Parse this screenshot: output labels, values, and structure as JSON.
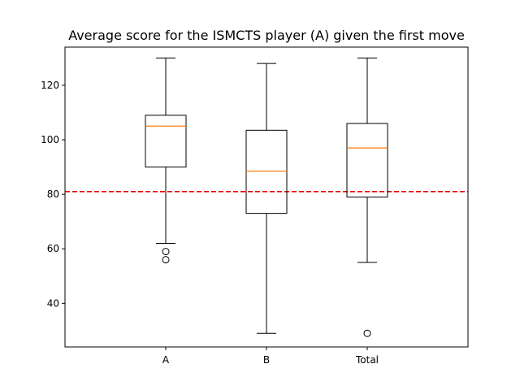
{
  "chart_data": {
    "type": "box",
    "title": "Average score for the ISMCTS player (A) given the first move",
    "xlabel": "",
    "ylabel": "",
    "ylim": [
      24,
      134
    ],
    "yticks": [
      40,
      60,
      80,
      100,
      120
    ],
    "categories": [
      "A",
      "B",
      "Total"
    ],
    "boxes": [
      {
        "label": "A",
        "whisker_low": 62,
        "q1": 90,
        "median": 105,
        "q3": 109,
        "whisker_high": 130,
        "outliers": [
          59,
          56
        ]
      },
      {
        "label": "B",
        "whisker_low": 29,
        "q1": 73,
        "median": 88.5,
        "q3": 103.5,
        "whisker_high": 128,
        "outliers": []
      },
      {
        "label": "Total",
        "whisker_low": 55,
        "q1": 79,
        "median": 97,
        "q3": 106,
        "whisker_high": 130,
        "outliers": [
          29
        ]
      }
    ],
    "reference_line": {
      "y": 81,
      "color": "#e8000b",
      "style": "dashed"
    },
    "box_color": "#000000",
    "median_color": "#ff7f0e",
    "grid": false,
    "legend": "none"
  }
}
